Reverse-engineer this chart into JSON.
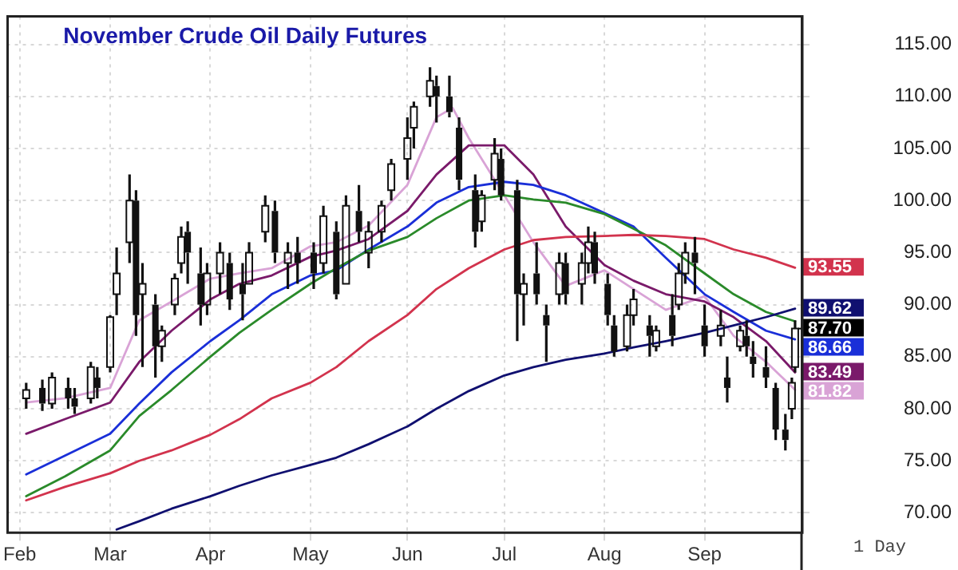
{
  "chart_data": {
    "type": "candlestick",
    "title": "November Crude Oil Daily Futures",
    "x": [
      "--02-03",
      "--02-08",
      "--02-11",
      "--02-16",
      "--02-18",
      "--02-23",
      "--02-25",
      "--03-01",
      "--03-03",
      "--03-07",
      "--03-09",
      "--03-11",
      "--03-15",
      "--03-17",
      "--03-21",
      "--03-23",
      "--03-25",
      "--03-29",
      "--03-31",
      "--04-04",
      "--04-07",
      "--04-11",
      "--04-13",
      "--04-18",
      "--04-21",
      "--04-25",
      "--04-28",
      "--05-03",
      "--05-06",
      "--05-10",
      "--05-13",
      "--05-17",
      "--05-20",
      "--05-24",
      "--05-27",
      "--06-01",
      "--06-03",
      "--06-08",
      "--06-10",
      "--06-14",
      "--06-17",
      "--06-22",
      "--06-24",
      "--06-28",
      "--06-30",
      "--07-05",
      "--07-07",
      "--07-11",
      "--07-14",
      "--07-18",
      "--07-20",
      "--07-25",
      "--07-27",
      "--07-29",
      "--08-02",
      "--08-04",
      "--08-08",
      "--08-10",
      "--08-15",
      "--08-17",
      "--08-22",
      "--08-24",
      "--08-26",
      "--08-29",
      "--09-01",
      "--09-06",
      "--09-08",
      "--09-12",
      "--09-14",
      "--09-16",
      "--09-20",
      "--09-23",
      "--09-26",
      "--09-28",
      "--09-29"
    ],
    "ohlc": [
      [
        81,
        82.5,
        80,
        81.8
      ],
      [
        82,
        82.8,
        79.8,
        80.5
      ],
      [
        80.5,
        83.5,
        80,
        83
      ],
      [
        82,
        83,
        80,
        81
      ],
      [
        81,
        82,
        79.5,
        80.2
      ],
      [
        81,
        84.5,
        80.5,
        84
      ],
      [
        83,
        84,
        81,
        82
      ],
      [
        84,
        89,
        83.5,
        88.8
      ],
      [
        91,
        95.5,
        89,
        93
      ],
      [
        96,
        102.5,
        94,
        100
      ],
      [
        100,
        101,
        87,
        89
      ],
      [
        91,
        94,
        84,
        92
      ],
      [
        90,
        91,
        83,
        86
      ],
      [
        86,
        88,
        84.5,
        87.5
      ],
      [
        90,
        93,
        89,
        92.5
      ],
      [
        94,
        97.5,
        93,
        96.5
      ],
      [
        97,
        98,
        92,
        95
      ],
      [
        93,
        95.5,
        88,
        90
      ],
      [
        90,
        94,
        89,
        93
      ],
      [
        93,
        96,
        91,
        95
      ],
      [
        94,
        95,
        89.5,
        90.5
      ],
      [
        92,
        94,
        88.5,
        91
      ],
      [
        92,
        96,
        92,
        95
      ],
      [
        97,
        100.5,
        96,
        99.5
      ],
      [
        99,
        100,
        94,
        95
      ],
      [
        94,
        96,
        91.5,
        95
      ],
      [
        95,
        96.5,
        92,
        94
      ],
      [
        95,
        96,
        91.5,
        93
      ],
      [
        94,
        99.5,
        93,
        98.5
      ],
      [
        97,
        98,
        90.5,
        91
      ],
      [
        92,
        100.5,
        92,
        99.5
      ],
      [
        99,
        101.5,
        96,
        97
      ],
      [
        95,
        98,
        93.5,
        97
      ],
      [
        97,
        100,
        96,
        99.5
      ],
      [
        101,
        104,
        100,
        103.5
      ],
      [
        104,
        108,
        102,
        106
      ],
      [
        107,
        109.5,
        105,
        109
      ],
      [
        110,
        112.8,
        109,
        111.5
      ],
      [
        111,
        112,
        107.5,
        110
      ],
      [
        110,
        112,
        108,
        108.5
      ],
      [
        107,
        108,
        101,
        102
      ],
      [
        101,
        102.5,
        95.5,
        97
      ],
      [
        98,
        101,
        97,
        100.5
      ],
      [
        102,
        106,
        101,
        104.5
      ],
      [
        104,
        105,
        100,
        100.5
      ],
      [
        101,
        102,
        86.5,
        91
      ],
      [
        91,
        93,
        88,
        92
      ],
      [
        93,
        96,
        90,
        91
      ],
      [
        89,
        90,
        84.5,
        88
      ],
      [
        91,
        95,
        90,
        94
      ],
      [
        94,
        95,
        90,
        91
      ],
      [
        92,
        95,
        90,
        94
      ],
      [
        94,
        97.5,
        93,
        96
      ],
      [
        96,
        97,
        92,
        93
      ],
      [
        92,
        93,
        88,
        89
      ],
      [
        88,
        89,
        85,
        85.5
      ],
      [
        86,
        90,
        85.5,
        89
      ],
      [
        89,
        91.5,
        88,
        90.5
      ],
      [
        88,
        89,
        85,
        87
      ],
      [
        86,
        88,
        85.5,
        87.5
      ],
      [
        89,
        91,
        86,
        87
      ],
      [
        90,
        94,
        89.5,
        93
      ],
      [
        93,
        96,
        92,
        95
      ],
      [
        95,
        96.5,
        91,
        94
      ],
      [
        88,
        90,
        85,
        86
      ],
      [
        87,
        89.5,
        86,
        88
      ],
      [
        83,
        85,
        80.6,
        82
      ],
      [
        86,
        88,
        85.5,
        87.5
      ],
      [
        87,
        88.5,
        85,
        86
      ],
      [
        85,
        86.5,
        83,
        84.3
      ],
      [
        84,
        86,
        82,
        83
      ],
      [
        82,
        82.5,
        77,
        78
      ],
      [
        78,
        79.5,
        76,
        77
      ],
      [
        80,
        83,
        79,
        82.5
      ],
      [
        84,
        88.5,
        83.5,
        87.7
      ]
    ],
    "series": [
      {
        "type": "line",
        "color": "#d2334d",
        "x": [
          "--02-03",
          "--02-15",
          "--03-01",
          "--03-10",
          "--03-20",
          "--04-01",
          "--04-10",
          "--04-20",
          "--05-02",
          "--05-10",
          "--05-20",
          "--06-01",
          "--06-10",
          "--06-20",
          "--07-01",
          "--07-10",
          "--07-20",
          "--08-01",
          "--08-10",
          "--08-20",
          "--09-01",
          "--09-10",
          "--09-20",
          "--09-29"
        ],
        "values": [
          71.2,
          72.5,
          73.8,
          75,
          76,
          77.5,
          79,
          81,
          82.5,
          84,
          86.5,
          89,
          91.5,
          93.5,
          95.3,
          96.2,
          96.5,
          96.6,
          96.7,
          96.6,
          96.3,
          95.3,
          94.5,
          93.55
        ],
        "value_labels": [
          null,
          null,
          null,
          null,
          null,
          null,
          null,
          null,
          null,
          null,
          null,
          null,
          null,
          null,
          null,
          null,
          null,
          null,
          null,
          null,
          null,
          null,
          null,
          "93.55"
        ]
      },
      {
        "type": "line",
        "color": "#101070",
        "x": [
          "--03-03",
          "--03-10",
          "--03-20",
          "--04-01",
          "--04-10",
          "--04-20",
          "--05-02",
          "--05-10",
          "--05-20",
          "--06-01",
          "--06-10",
          "--06-20",
          "--07-01",
          "--07-10",
          "--07-20",
          "--08-01",
          "--08-10",
          "--08-20",
          "--09-01",
          "--09-10",
          "--09-20",
          "--09-29"
        ],
        "values": [
          68.4,
          69.2,
          70.4,
          71.6,
          72.6,
          73.6,
          74.6,
          75.3,
          76.6,
          78.3,
          80,
          81.7,
          83.2,
          84,
          84.7,
          85.3,
          85.9,
          86.5,
          87.3,
          88,
          88.8,
          89.62
        ],
        "value_labels": [
          null,
          null,
          null,
          null,
          null,
          null,
          null,
          null,
          null,
          null,
          null,
          null,
          null,
          null,
          null,
          null,
          null,
          null,
          null,
          null,
          null,
          "89.62"
        ]
      },
      {
        "type": "line",
        "color": "#2a8a2a",
        "x": [
          "--02-03",
          "--02-15",
          "--03-01",
          "--03-10",
          "--03-20",
          "--04-01",
          "--04-10",
          "--04-20",
          "--05-02",
          "--05-10",
          "--05-20",
          "--06-01",
          "--06-10",
          "--06-20",
          "--07-01",
          "--07-10",
          "--07-20",
          "--08-01",
          "--08-10",
          "--08-20",
          "--09-01",
          "--09-10",
          "--09-20",
          "--09-29"
        ],
        "values": [
          71.6,
          73.5,
          76,
          79.3,
          81.8,
          85,
          87.3,
          89.5,
          92,
          93.5,
          95.2,
          96.5,
          98.3,
          100,
          100.5,
          100.1,
          99.8,
          98.7,
          97.3,
          95.7,
          93,
          91,
          89.3,
          88.4
        ]
      },
      {
        "type": "line",
        "color": "#1a2fd8",
        "x": [
          "--02-03",
          "--02-15",
          "--03-01",
          "--03-10",
          "--03-20",
          "--04-01",
          "--04-10",
          "--04-20",
          "--05-02",
          "--05-10",
          "--05-20",
          "--06-01",
          "--06-10",
          "--06-20",
          "--07-01",
          "--07-10",
          "--07-20",
          "--08-01",
          "--08-10",
          "--08-20",
          "--09-01",
          "--09-10",
          "--09-20",
          "--09-29"
        ],
        "values": [
          73.7,
          75.5,
          77.6,
          80.5,
          83.5,
          86.5,
          88.5,
          91,
          92.8,
          93.3,
          95.3,
          97.5,
          99.8,
          101.3,
          101.8,
          101.5,
          100.5,
          98.8,
          97.5,
          94.5,
          91,
          89.3,
          87.5,
          86.66
        ],
        "value_labels": [
          null,
          null,
          null,
          null,
          null,
          null,
          null,
          null,
          null,
          null,
          null,
          null,
          null,
          null,
          null,
          null,
          null,
          null,
          null,
          null,
          null,
          null,
          null,
          "86.66"
        ]
      },
      {
        "type": "line",
        "color": "#7a1a6a",
        "x": [
          "--02-03",
          "--02-15",
          "--03-01",
          "--03-10",
          "--03-20",
          "--04-01",
          "--04-10",
          "--04-20",
          "--05-02",
          "--05-10",
          "--05-20",
          "--06-01",
          "--06-10",
          "--06-20",
          "--07-01",
          "--07-10",
          "--07-20",
          "--08-01",
          "--08-10",
          "--08-20",
          "--09-01",
          "--09-10",
          "--09-20",
          "--09-29"
        ],
        "values": [
          77.6,
          79,
          80.6,
          84.5,
          87.5,
          90.5,
          92,
          92.8,
          94.6,
          95.2,
          96.3,
          99,
          102.5,
          105.3,
          105.3,
          102.5,
          97.5,
          93.8,
          92.3,
          91,
          90.3,
          88.8,
          86.5,
          83.49
        ],
        "value_labels": [
          null,
          null,
          null,
          null,
          null,
          null,
          null,
          null,
          null,
          null,
          null,
          null,
          null,
          null,
          null,
          null,
          null,
          null,
          null,
          null,
          null,
          null,
          null,
          "83.49"
        ]
      },
      {
        "type": "line",
        "color": "#d9a3d6",
        "x": [
          "--02-03",
          "--02-15",
          "--03-01",
          "--03-10",
          "--03-20",
          "--04-01",
          "--04-10",
          "--04-20",
          "--05-02",
          "--05-10",
          "--05-20",
          "--06-01",
          "--06-10",
          "--06-15",
          "--06-20",
          "--07-01",
          "--07-10",
          "--07-20",
          "--08-01",
          "--08-10",
          "--08-20",
          "--09-01",
          "--09-10",
          "--09-20",
          "--09-29"
        ],
        "values": [
          80.6,
          81,
          82,
          88.5,
          90.3,
          92.5,
          93,
          93.5,
          95.6,
          96,
          97.6,
          101.5,
          108,
          108.9,
          106,
          100.5,
          96,
          91.8,
          93.3,
          91.5,
          89.5,
          90.8,
          87,
          84.5,
          81.82
        ],
        "value_labels": [
          null,
          null,
          null,
          null,
          null,
          null,
          null,
          null,
          null,
          null,
          null,
          null,
          null,
          null,
          null,
          null,
          null,
          null,
          null,
          null,
          null,
          null,
          null,
          null,
          "81.82"
        ]
      }
    ],
    "xlim": [
      "--01-28",
      "--10-01"
    ],
    "xticks": [
      {
        "value": "--02-01",
        "label": "Feb"
      },
      {
        "value": "--03-01",
        "label": "Mar"
      },
      {
        "value": "--04-01",
        "label": "Apr"
      },
      {
        "value": "--05-02",
        "label": "May"
      },
      {
        "value": "--06-01",
        "label": "Jun"
      },
      {
        "value": "--07-01",
        "label": "Jul"
      },
      {
        "value": "--08-01",
        "label": "Aug"
      },
      {
        "value": "--09-01",
        "label": "Sep"
      }
    ],
    "ylim": [
      68.1,
      117.7
    ],
    "yticks": [
      {
        "value": 70,
        "label": "70.00"
      },
      {
        "value": 75,
        "label": "75.00"
      },
      {
        "value": 80,
        "label": "80.00"
      },
      {
        "value": 85,
        "label": "85.00"
      },
      {
        "value": 90,
        "label": "90.00"
      },
      {
        "value": 95,
        "label": "95.00"
      },
      {
        "value": 100,
        "label": "100.00"
      },
      {
        "value": 105,
        "label": "105.00"
      },
      {
        "value": 110,
        "label": "110.00"
      },
      {
        "value": 115,
        "label": "115.00"
      }
    ],
    "grid": true,
    "legend": false,
    "marker": "none",
    "line_style": "solid",
    "annotations": [
      {
        "text": "87.70",
        "x": "--09-29",
        "y": 87.7
      },
      "1 Day"
    ]
  }
}
